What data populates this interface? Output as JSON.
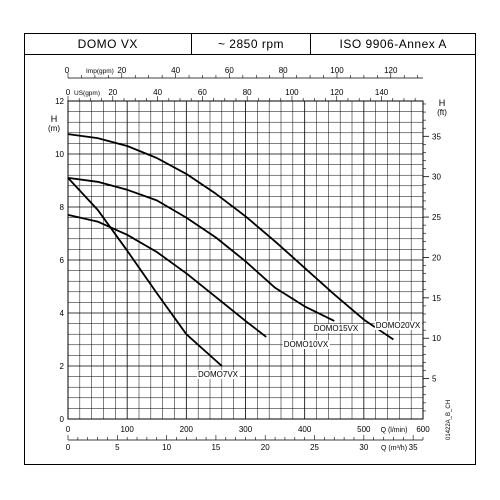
{
  "header": {
    "model": "DOMO VX",
    "speed": "~ 2850 rpm",
    "standard": "ISO 9906-Annex A"
  },
  "figure_id": "01422A_B_CH",
  "chart_data": {
    "type": "line",
    "grid": true,
    "y_left": {
      "label_line1": "H",
      "label_line2": "(m)",
      "range": [
        0,
        12
      ],
      "ticks": [
        0,
        2,
        4,
        6,
        8,
        10,
        12
      ]
    },
    "y_right": {
      "label_line1": "H",
      "label_line2": "(ft)",
      "range_m": [
        0,
        12
      ],
      "ticks": [
        5,
        10,
        15,
        20,
        25,
        30,
        35
      ]
    },
    "x_bottom_lmin": {
      "label": "Q (l/min)",
      "range": [
        0,
        600
      ],
      "ticks": [
        0,
        100,
        200,
        300,
        400,
        500,
        600
      ]
    },
    "x_bottom_m3h": {
      "label": "Q (m³/h)",
      "ticks": [
        0,
        5,
        10,
        15,
        20,
        25,
        30,
        35
      ]
    },
    "x_top_imp": {
      "label": "Imp(gpm)",
      "ticks": [
        0,
        20,
        40,
        60,
        80,
        100,
        120
      ]
    },
    "x_top_us": {
      "label": "US(gpm)",
      "ticks": [
        0,
        20,
        40,
        60,
        80,
        100,
        120,
        140
      ]
    },
    "series": [
      {
        "name": "DOMO7VX",
        "label": "DOMO7VX",
        "x": [
          0,
          50,
          100,
          150,
          200,
          260
        ],
        "y": [
          9.1,
          7.9,
          6.35,
          4.75,
          3.2,
          2.0
        ]
      },
      {
        "name": "DOMO10VX",
        "label": "DOMO10VX",
        "x": [
          0,
          50,
          100,
          150,
          200,
          250,
          300,
          335
        ],
        "y": [
          7.7,
          7.45,
          6.95,
          6.3,
          5.5,
          4.6,
          3.7,
          3.1
        ]
      },
      {
        "name": "DOMO15VX",
        "label": "DOMO15VX",
        "x": [
          0,
          50,
          100,
          150,
          200,
          250,
          300,
          350,
          400,
          450
        ],
        "y": [
          9.1,
          8.95,
          8.65,
          8.25,
          7.6,
          6.85,
          5.95,
          4.95,
          4.25,
          3.7
        ]
      },
      {
        "name": "DOMO20VX",
        "label": "DOMO20VX",
        "x": [
          0,
          50,
          100,
          150,
          200,
          250,
          300,
          350,
          400,
          450,
          500,
          550
        ],
        "y": [
          10.75,
          10.6,
          10.3,
          9.85,
          9.25,
          8.5,
          7.65,
          6.7,
          5.7,
          4.7,
          3.75,
          3.0
        ]
      }
    ]
  }
}
